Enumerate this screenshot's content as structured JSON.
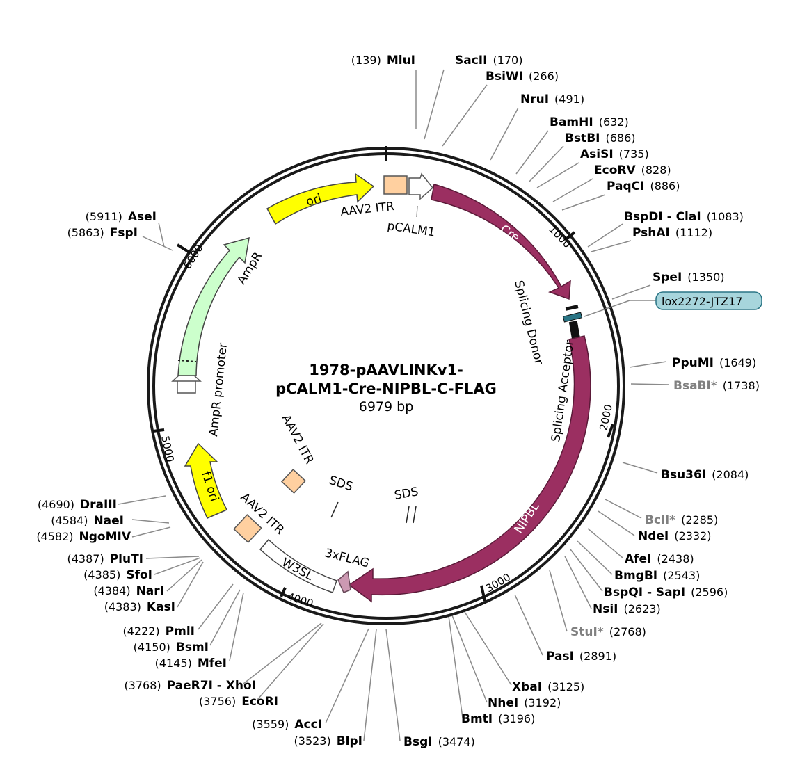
{
  "plasmid": {
    "title_line1": "1978-pAAVLINKv1-",
    "title_line2": "pCALM1-Cre-NIPBL-C-FLAG",
    "size_label": "6979 bp"
  },
  "colors": {
    "cre": "#9b2f61",
    "nipbl": "#9b2f61",
    "ori": "#ffff00",
    "ampr": "#ccffcc",
    "itr": "#ffd0a0",
    "flag": "#cc99b2",
    "lox": "#a7d5dc",
    "lox_marker": "#2a7585",
    "gray_enzyme": "#808080"
  },
  "ticks": [
    "1000",
    "2000",
    "3000",
    "4000",
    "5000",
    "6000"
  ],
  "features": {
    "ori": "ori",
    "aav2_itr_top": "AAV2 ITR",
    "pcalm1": "pCALM1",
    "cre": "Cre",
    "splicing_donor": "Splicing Donor",
    "splicing_acceptor": "Splicing Acceptor",
    "nipbl": "NIPBL",
    "flag": "3xFLAG",
    "w3sl": "W3SL",
    "aav2_itr_bottom": "AAV2 ITR",
    "aav2_itr_inner": "AAV2 ITR",
    "f1_ori": "f1 ori",
    "ampr": "AmpR",
    "ampr_promoter": "AmpR promoter",
    "sds_left": "SDS",
    "sds_right": "SDS",
    "lox_badge": "lox2272-JTZ17"
  },
  "enzymes_right": [
    {
      "name": "SacII",
      "pos": "(170)"
    },
    {
      "name": "BsiWI",
      "pos": "(266)"
    },
    {
      "name": "NruI",
      "pos": "(491)"
    },
    {
      "name": "BamHI",
      "pos": "(632)"
    },
    {
      "name": "BstBI",
      "pos": "(686)"
    },
    {
      "name": "AsiSI",
      "pos": "(735)"
    },
    {
      "name": "EcoRV",
      "pos": "(828)"
    },
    {
      "name": "PaqCI",
      "pos": "(886)"
    },
    {
      "name": "BspDI - ClaI",
      "pos": "(1083)"
    },
    {
      "name": "PshAI",
      "pos": "(1112)"
    },
    {
      "name": "SpeI",
      "pos": "(1350)"
    },
    {
      "name": "PpuMI",
      "pos": "(1649)"
    },
    {
      "name": "BsaBI*",
      "pos": "(1738)",
      "gray": true
    },
    {
      "name": "Bsu36I",
      "pos": "(2084)"
    },
    {
      "name": "BclI*",
      "pos": "(2285)",
      "gray": true
    },
    {
      "name": "NdeI",
      "pos": "(2332)"
    },
    {
      "name": "AfeI",
      "pos": "(2438)"
    },
    {
      "name": "BmgBI",
      "pos": "(2543)"
    },
    {
      "name": "BspQI - SapI",
      "pos": "(2596)"
    },
    {
      "name": "NsiI",
      "pos": "(2623)"
    },
    {
      "name": "StuI*",
      "pos": "(2768)",
      "gray": true
    },
    {
      "name": "PasI",
      "pos": "(2891)"
    },
    {
      "name": "XbaI",
      "pos": "(3125)"
    },
    {
      "name": "NheI",
      "pos": "(3192)"
    },
    {
      "name": "BmtI",
      "pos": "(3196)"
    },
    {
      "name": "BsgI",
      "pos": "(3474)"
    }
  ],
  "enzymes_left": [
    {
      "name": "MluI",
      "pos": "(139)"
    },
    {
      "name": "AseI",
      "pos": "(5911)"
    },
    {
      "name": "FspI",
      "pos": "(5863)"
    },
    {
      "name": "DraIII",
      "pos": "(4690)"
    },
    {
      "name": "NaeI",
      "pos": "(4584)"
    },
    {
      "name": "NgoMIV",
      "pos": "(4582)"
    },
    {
      "name": "PluTI",
      "pos": "(4387)"
    },
    {
      "name": "SfoI",
      "pos": "(4385)"
    },
    {
      "name": "NarI",
      "pos": "(4384)"
    },
    {
      "name": "KasI",
      "pos": "(4383)"
    },
    {
      "name": "PmlI",
      "pos": "(4222)"
    },
    {
      "name": "BsmI",
      "pos": "(4150)"
    },
    {
      "name": "MfeI",
      "pos": "(4145)"
    },
    {
      "name": "PaeR7I - XhoI",
      "pos": "(3768)"
    },
    {
      "name": "EcoRI",
      "pos": "(3756)"
    },
    {
      "name": "AccI",
      "pos": "(3559)"
    },
    {
      "name": "BlpI",
      "pos": "(3523)"
    }
  ]
}
